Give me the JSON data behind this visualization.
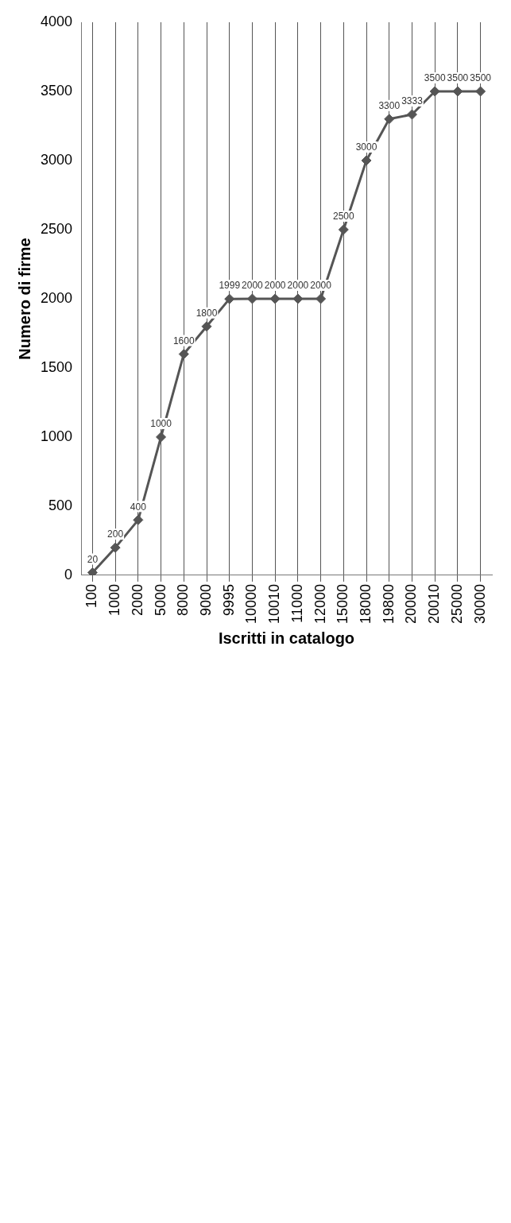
{
  "chart_data": {
    "type": "line",
    "xlabel": "Iscritti in catalogo",
    "ylabel": "Numero di firme",
    "categories": [
      "100",
      "1000",
      "2000",
      "5000",
      "8000",
      "9000",
      "9995",
      "10000",
      "10010",
      "11000",
      "12000",
      "15000",
      "18000",
      "19800",
      "20000",
      "20010",
      "25000",
      "30000"
    ],
    "series": [
      {
        "color": "#555555",
        "values": [
          20,
          200,
          400,
          1000,
          1600,
          1800,
          1999,
          2000,
          2000,
          2000,
          2000,
          2500,
          3000,
          3300,
          3333,
          3500,
          3500,
          3500
        ]
      }
    ],
    "ylim": [
      0,
      4000
    ],
    "yticks": [
      0,
      500,
      1000,
      1500,
      2000,
      2500,
      3000,
      3500,
      4000
    ],
    "grid": "x",
    "legend": false,
    "marker": "diamond",
    "data_labels": true
  }
}
